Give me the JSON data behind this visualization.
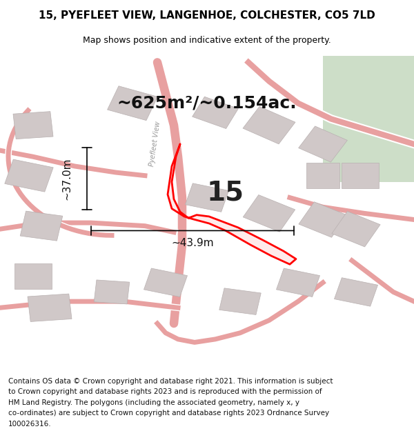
{
  "title": "15, PYEFLEET VIEW, LANGENHOE, COLCHESTER, CO5 7LD",
  "subtitle": "Map shows position and indicative extent of the property.",
  "footer_lines": [
    "Contains OS data © Crown copyright and database right 2021. This information is subject",
    "to Crown copyright and database rights 2023 and is reproduced with the permission of",
    "HM Land Registry. The polygons (including the associated geometry, namely x, y",
    "co-ordinates) are subject to Crown copyright and database rights 2023 Ordnance Survey",
    "100026316."
  ],
  "area_label": "~625m²/~0.154ac.",
  "number_label": "15",
  "dim_vertical": "~37.0m",
  "dim_horizontal": "~43.9m",
  "road_label": "Pyefleet View",
  "map_bg": "#ede8e8",
  "road_color": "#e8a0a0",
  "building_fill": "#d0c8c8",
  "building_stroke": "#b8b0b0",
  "plot_color": "#ff0000",
  "title_fontsize": 11,
  "subtitle_fontsize": 9,
  "footer_fontsize": 7.5,
  "area_fontsize": 18,
  "number_fontsize": 28,
  "dim_fontsize": 11,
  "green_color": "#cddec8"
}
